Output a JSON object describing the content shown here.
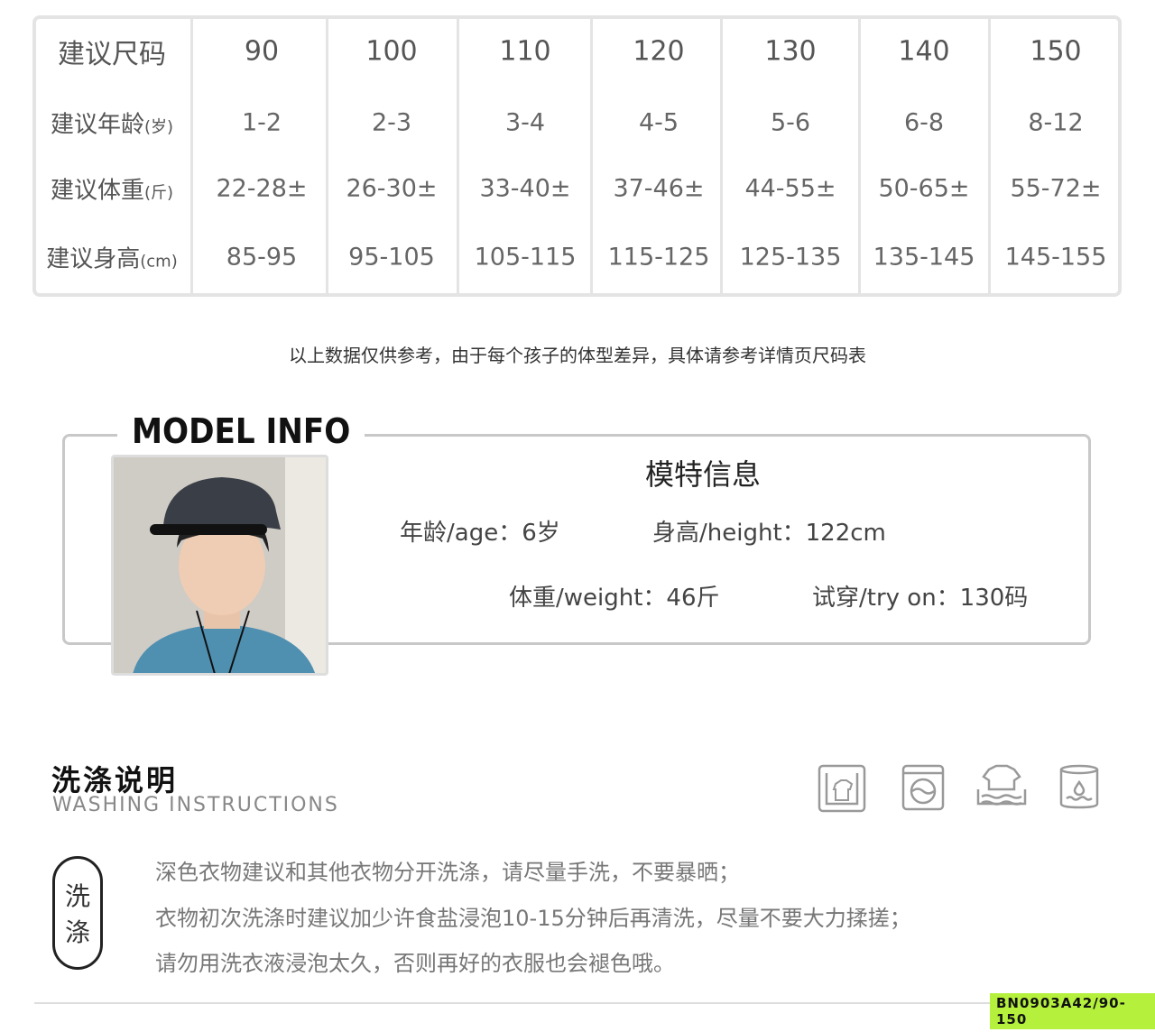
{
  "size_table": {
    "row_labels": [
      {
        "main": "建议尺码",
        "unit": ""
      },
      {
        "main": "建议年龄",
        "unit": "(岁)"
      },
      {
        "main": "建议体重",
        "unit": "(斤)"
      },
      {
        "main": "建议身高",
        "unit": "(cm)"
      }
    ],
    "columns": [
      {
        "size": "90",
        "age": "1-2",
        "weight": "22-28±",
        "height": "85-95"
      },
      {
        "size": "100",
        "age": "2-3",
        "weight": "26-30±",
        "height": "95-105"
      },
      {
        "size": "110",
        "age": "3-4",
        "weight": "33-40±",
        "height": "105-115"
      },
      {
        "size": "120",
        "age": "4-5",
        "weight": "37-46±",
        "height": "115-125"
      },
      {
        "size": "130",
        "age": "5-6",
        "weight": "44-55±",
        "height": "125-135"
      },
      {
        "size": "140",
        "age": "6-8",
        "weight": "50-65±",
        "height": "135-145"
      },
      {
        "size": "150",
        "age": "8-12",
        "weight": "55-72±",
        "height": "145-155"
      }
    ]
  },
  "note": "以上数据仅供参考，由于每个孩子的体型差异，具体请参考详情页尺码表",
  "model": {
    "section_title": "MODEL INFO",
    "title": "模特信息",
    "age": "年龄/age：6岁",
    "height": "身高/height：122cm",
    "weight": "体重/weight：46斤",
    "try_on": "试穿/try on：130码"
  },
  "washing": {
    "title": "洗涤说明",
    "subtitle": "WASHING  INSTRUCTIONS",
    "badge": "洗涤",
    "icons": [
      "hand-wash-icon",
      "washing-machine-icon",
      "soak-icon",
      "water-container-icon"
    ],
    "lines": [
      "深色衣物建议和其他衣物分开洗涤，请尽量手洗，不要暴晒；",
      "衣物初次洗涤时建议加少许食盐浸泡10-15分钟后再清洗，尽量不要大力揉搓；",
      "请勿用洗衣液浸泡太久，否则再好的衣服也会褪色哦。"
    ]
  },
  "product_code": "BN0903A42/90-150",
  "colors": {
    "code_bg": "#b4f03c",
    "border": "#e4e4e4"
  }
}
